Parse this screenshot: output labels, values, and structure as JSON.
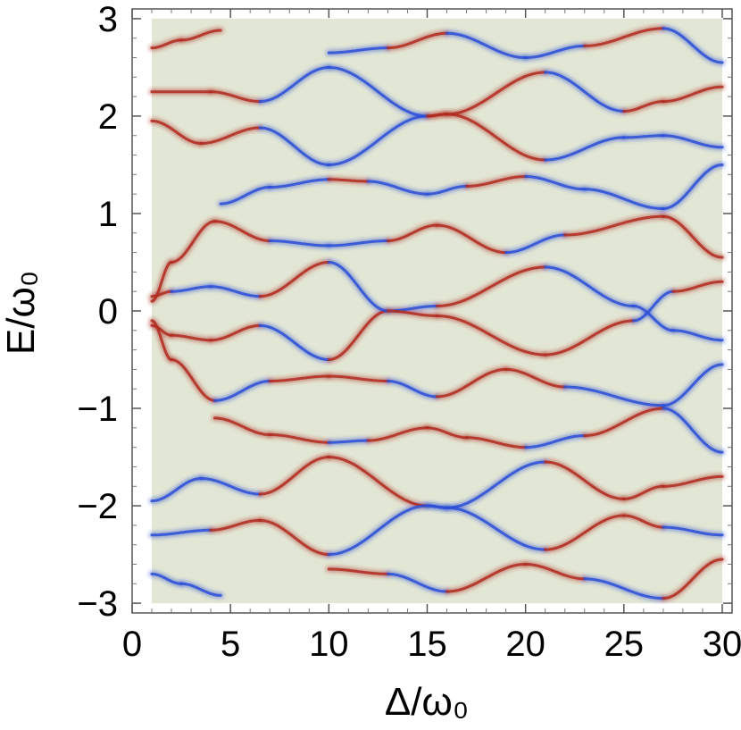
{
  "chart_data": {
    "type": "heatmap",
    "title": "",
    "xlabel": "Δ/ω₀",
    "ylabel": "E/ω₀",
    "xlim": [
      0,
      30.5
    ],
    "ylim": [
      -3.1,
      3.1
    ],
    "data_x_range": [
      1,
      30
    ],
    "data_y_range": [
      -3,
      3
    ],
    "x_ticks": [
      0,
      5,
      10,
      15,
      20,
      25,
      30
    ],
    "x_tick_labels": [
      "0",
      "5",
      "10",
      "15",
      "20",
      "25",
      "30"
    ],
    "y_ticks": [
      -3,
      -2,
      -1,
      0,
      1,
      2,
      3
    ],
    "y_tick_labels": [
      "−3",
      "−2",
      "−1",
      "0",
      "1",
      "2",
      "3"
    ],
    "background_color": "#e2e6d4",
    "positive_color": "#b02a1e",
    "negative_color": "#2b4fd6",
    "grid": false,
    "legend": "none",
    "bands": [
      {
        "points": [
          [
            1,
            -0.15
          ],
          [
            2,
            -0.25
          ],
          [
            4,
            -0.3
          ],
          [
            6.5,
            -0.15
          ],
          [
            10,
            -0.5
          ],
          [
            13,
            0
          ],
          [
            15.5,
            0.05
          ],
          [
            21,
            0.45
          ],
          [
            25.5,
            0.05
          ],
          [
            27.5,
            -0.2
          ],
          [
            30,
            -0.3
          ]
        ],
        "signs": [
          1,
          1,
          1,
          -1,
          1,
          -1,
          1,
          -1,
          -1,
          -1
        ]
      },
      {
        "points": [
          [
            1,
            0.15
          ],
          [
            2,
            0.2
          ],
          [
            4,
            0.25
          ],
          [
            6.5,
            0.15
          ],
          [
            10,
            0.5
          ],
          [
            13,
            0
          ],
          [
            15.5,
            -0.05
          ],
          [
            21,
            -0.45
          ],
          [
            25.5,
            -0.1
          ],
          [
            27.5,
            0.2
          ],
          [
            30,
            0.3
          ]
        ],
        "signs": [
          1,
          -1,
          -1,
          1,
          -1,
          1,
          1,
          1,
          -1,
          1
        ]
      },
      {
        "points": [
          [
            1,
            -0.1
          ],
          [
            2,
            -0.5
          ],
          [
            4.2,
            -0.92
          ],
          [
            7,
            -0.72
          ],
          [
            10,
            -0.67
          ],
          [
            13,
            -0.72
          ],
          [
            15.5,
            -0.88
          ],
          [
            19,
            -0.6
          ],
          [
            22,
            -0.78
          ],
          [
            27,
            -0.97
          ],
          [
            30,
            -0.55
          ]
        ],
        "signs": [
          1,
          1,
          -1,
          1,
          1,
          -1,
          1,
          1,
          -1,
          -1
        ]
      },
      {
        "points": [
          [
            1,
            0.1
          ],
          [
            2,
            0.5
          ],
          [
            4.2,
            0.92
          ],
          [
            7,
            0.72
          ],
          [
            10,
            0.67
          ],
          [
            13,
            0.72
          ],
          [
            15.5,
            0.88
          ],
          [
            19,
            0.6
          ],
          [
            22,
            0.78
          ],
          [
            27,
            0.97
          ],
          [
            30,
            0.55
          ]
        ],
        "signs": [
          1,
          1,
          1,
          -1,
          -1,
          1,
          1,
          -1,
          1,
          1
        ]
      },
      {
        "points": [
          [
            4.2,
            -1.1
          ],
          [
            7,
            -1.27
          ],
          [
            10,
            -1.35
          ],
          [
            12,
            -1.33
          ],
          [
            15,
            -1.2
          ],
          [
            17,
            -1.3
          ],
          [
            20,
            -1.4
          ],
          [
            23,
            -1.28
          ],
          [
            27,
            -1.0
          ],
          [
            30,
            -1.45
          ]
        ],
        "signs": [
          1,
          1,
          -1,
          1,
          1,
          1,
          -1,
          1,
          -1
        ]
      },
      {
        "points": [
          [
            4.5,
            1.1
          ],
          [
            7,
            1.27
          ],
          [
            10,
            1.35
          ],
          [
            12,
            1.33
          ],
          [
            15,
            1.2
          ],
          [
            17,
            1.28
          ],
          [
            20,
            1.38
          ],
          [
            23,
            1.25
          ],
          [
            27,
            1.05
          ],
          [
            30,
            1.5
          ]
        ],
        "signs": [
          -1,
          -1,
          1,
          -1,
          -1,
          1,
          -1,
          -1,
          -1
        ]
      },
      {
        "points": [
          [
            1,
            -1.95
          ],
          [
            3.5,
            -1.72
          ],
          [
            6.5,
            -1.88
          ],
          [
            10,
            -1.5
          ],
          [
            15,
            -2.0
          ],
          [
            16,
            -2.02
          ],
          [
            21,
            -1.55
          ],
          [
            25,
            -1.93
          ],
          [
            27,
            -1.8
          ],
          [
            30,
            -1.7
          ]
        ],
        "signs": [
          -1,
          -1,
          1,
          1,
          -1,
          -1,
          1,
          1,
          1
        ]
      },
      {
        "points": [
          [
            1,
            1.95
          ],
          [
            3.5,
            1.72
          ],
          [
            6.5,
            1.88
          ],
          [
            10,
            1.5
          ],
          [
            15,
            2.0
          ],
          [
            16,
            2.02
          ],
          [
            21,
            1.55
          ],
          [
            25,
            1.78
          ],
          [
            27,
            1.8
          ],
          [
            30,
            1.68
          ]
        ],
        "signs": [
          1,
          1,
          -1,
          -1,
          1,
          1,
          -1,
          -1,
          -1
        ]
      },
      {
        "points": [
          [
            1,
            -2.3
          ],
          [
            4,
            -2.25
          ],
          [
            6.5,
            -2.15
          ],
          [
            10,
            -2.5
          ],
          [
            15,
            -2.0
          ],
          [
            16,
            -2.02
          ],
          [
            21,
            -2.45
          ],
          [
            25,
            -2.1
          ],
          [
            27,
            -2.22
          ],
          [
            30,
            -2.3
          ]
        ],
        "signs": [
          -1,
          1,
          1,
          -1,
          -1,
          -1,
          1,
          1,
          -1
        ]
      },
      {
        "points": [
          [
            1,
            2.25
          ],
          [
            4,
            2.25
          ],
          [
            6.5,
            2.15
          ],
          [
            10,
            2.5
          ],
          [
            15,
            2.0
          ],
          [
            16,
            2.02
          ],
          [
            21,
            2.45
          ],
          [
            25,
            2.05
          ],
          [
            27,
            2.15
          ],
          [
            30,
            2.3
          ]
        ],
        "signs": [
          1,
          1,
          -1,
          -1,
          1,
          1,
          -1,
          1,
          1
        ]
      },
      {
        "points": [
          [
            10,
            -2.65
          ],
          [
            13,
            -2.7
          ],
          [
            16,
            -2.88
          ],
          [
            20,
            -2.6
          ],
          [
            23,
            -2.75
          ],
          [
            27,
            -2.95
          ],
          [
            30,
            -2.55
          ]
        ],
        "signs": [
          1,
          -1,
          1,
          1,
          -1,
          1
        ]
      },
      {
        "points": [
          [
            10,
            2.65
          ],
          [
            13,
            2.7
          ],
          [
            16,
            2.85
          ],
          [
            20,
            2.6
          ],
          [
            23,
            2.72
          ],
          [
            27,
            2.9
          ],
          [
            30,
            2.55
          ]
        ],
        "signs": [
          -1,
          1,
          -1,
          -1,
          1,
          -1
        ]
      },
      {
        "points": [
          [
            1,
            -2.7
          ],
          [
            2.5,
            -2.8
          ],
          [
            4.5,
            -2.92
          ]
        ],
        "signs": [
          -1,
          -1
        ]
      },
      {
        "points": [
          [
            1,
            2.7
          ],
          [
            2.5,
            2.78
          ],
          [
            4.5,
            2.88
          ]
        ],
        "signs": [
          1,
          1
        ]
      }
    ]
  }
}
